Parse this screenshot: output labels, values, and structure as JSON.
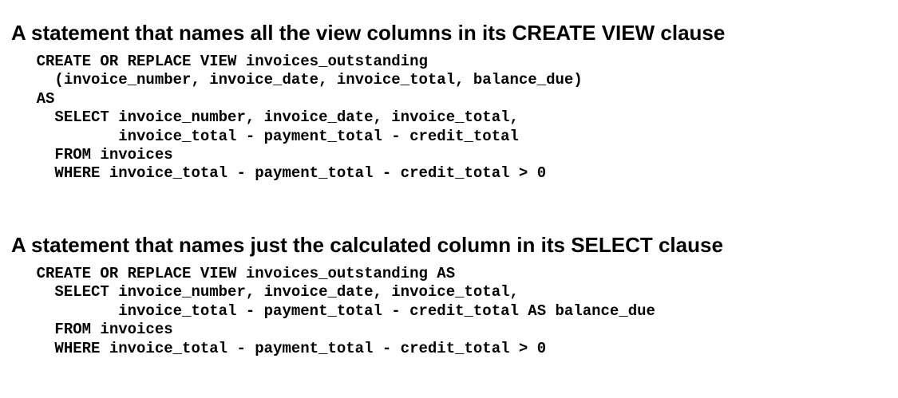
{
  "section1": {
    "heading": "A statement that names all the view columns in its CREATE VIEW clause",
    "code_lines": [
      "    CREATE OR REPLACE VIEW invoices_outstanding",
      "      (invoice_number, invoice_date, invoice_total, balance_due)",
      "    AS",
      "      SELECT invoice_number, invoice_date, invoice_total,",
      "             invoice_total - payment_total - credit_total",
      "      FROM invoices",
      "      WHERE invoice_total - payment_total - credit_total > 0"
    ]
  },
  "section2": {
    "heading": "A statement that names just the calculated column in its SELECT clause",
    "code_lines": [
      "    CREATE OR REPLACE VIEW invoices_outstanding AS",
      "      SELECT invoice_number, invoice_date, invoice_total,",
      "             invoice_total - payment_total - credit_total AS balance_due",
      "      FROM invoices",
      "      WHERE invoice_total - payment_total - credit_total > 0"
    ]
  }
}
